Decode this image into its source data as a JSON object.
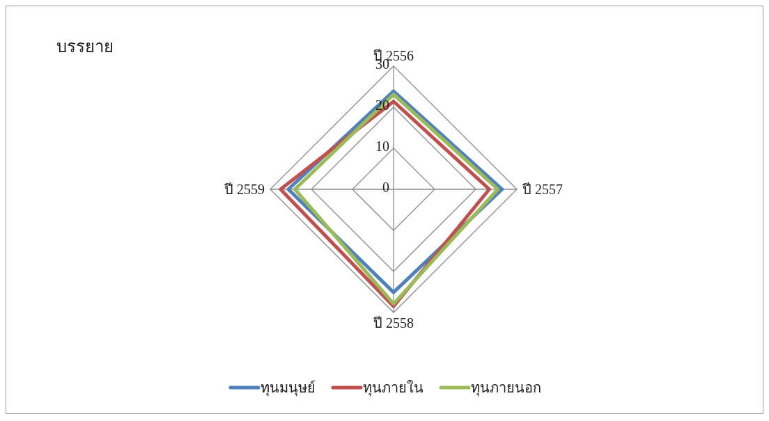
{
  "chart_data": {
    "type": "radar",
    "title": "บรรยาย",
    "categories": [
      "ปี 2556",
      "ปี 2557",
      "ปี 2558",
      "ปี 2559"
    ],
    "series": [
      {
        "name": "ทุนมนุษย์",
        "color": "#4f81bd",
        "values": [
          23.9,
          26.4,
          25.1,
          25.6
        ]
      },
      {
        "name": "ทุนภายใน",
        "color": "#c0504d",
        "values": [
          21.4,
          23.3,
          28.5,
          27.5
        ]
      },
      {
        "name": "ทุนภายนอก",
        "color": "#9bbb59",
        "values": [
          23.1,
          25.4,
          27.9,
          24.0
        ]
      }
    ],
    "ylim": [
      0,
      30
    ],
    "yticks": [
      0,
      10,
      20,
      30
    ],
    "grid": true,
    "legend": "bottom",
    "marker": "none",
    "line_style": "solid"
  }
}
